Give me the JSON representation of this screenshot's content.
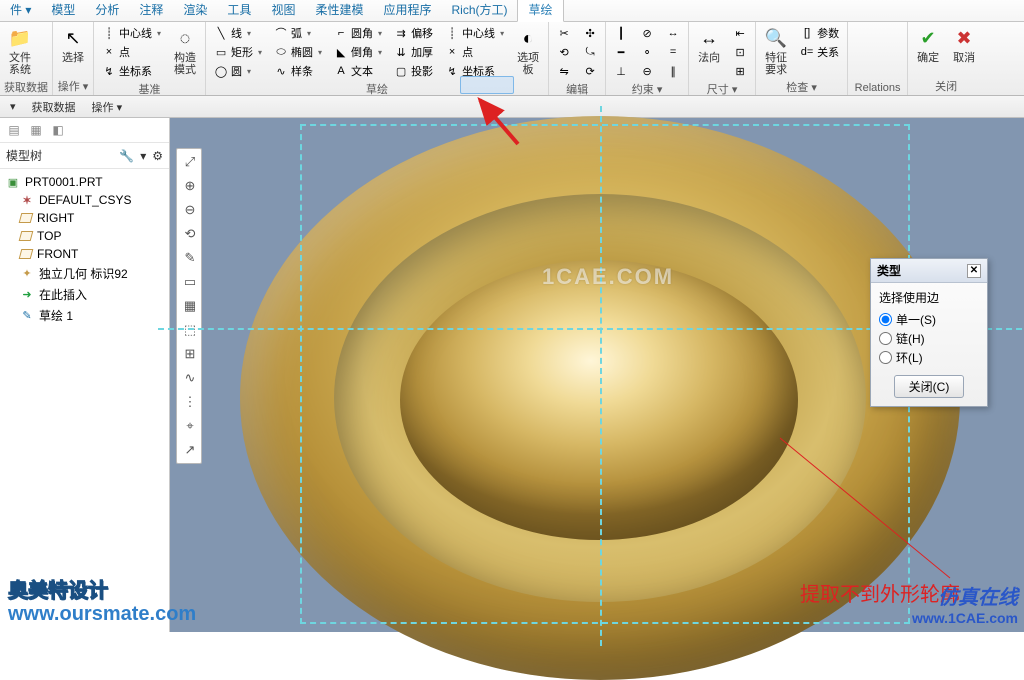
{
  "tabs": {
    "items": [
      "件 ▾",
      "模型",
      "分析",
      "注释",
      "渲染",
      "工具",
      "视图",
      "柔性建模",
      "应用程序",
      "Rich(方工)",
      "草绘"
    ],
    "active_index": 10
  },
  "ribbon": {
    "groups": {
      "file": {
        "label": "获取数据",
        "btn_file": "文件\n系统",
        "dd": "▾"
      },
      "ops": {
        "label": "操作 ▾",
        "btn_select": "选择"
      },
      "datum": {
        "label": "基准",
        "btn_mode": "构造\n模式",
        "centerline": "中心线",
        "point": "点",
        "csys": "坐标系"
      },
      "sketch": {
        "label": "草绘",
        "line": "线",
        "rect": "矩形",
        "circle": "圆",
        "arc": "弧",
        "ellipse": "椭圆",
        "spline": "样条",
        "fillet": "圆角",
        "chamfer": "倒角",
        "text": "文本",
        "offset": "偏移",
        "thicken": "加厚",
        "project": "投影",
        "cl2": "中心线",
        "pt2": "点",
        "csys2": "坐标系",
        "palette": "选项\n板"
      },
      "edit": {
        "label": "编辑"
      },
      "constrain": {
        "label": "约束 ▾"
      },
      "dim": {
        "label": "尺寸 ▾",
        "btn_dir": "法向"
      },
      "inspect": {
        "label": "检查 ▾",
        "btn_feat": "特征\n要求",
        "param": "参数",
        "rel": "关系"
      },
      "relations": {
        "label": "Relations"
      },
      "close": {
        "label": "关闭",
        "ok": "确定",
        "cancel": "取消"
      }
    }
  },
  "quickrow": {
    "a": "▾",
    "b": "获取数据",
    "c": "操作 ▾"
  },
  "tree": {
    "title": "模型树",
    "items": [
      {
        "icon": "cube",
        "label": "PRT0001.PRT",
        "root": true
      },
      {
        "icon": "csys",
        "label": "DEFAULT_CSYS"
      },
      {
        "icon": "plane",
        "label": "RIGHT"
      },
      {
        "icon": "plane",
        "label": "TOP"
      },
      {
        "icon": "plane",
        "label": "FRONT"
      },
      {
        "icon": "geom",
        "label": "独立几何 标识92"
      },
      {
        "icon": "insert",
        "label": "在此插入"
      },
      {
        "icon": "sketch",
        "label": "草绘 1"
      }
    ]
  },
  "side_tools": [
    "⤢",
    "⊕",
    "⊖",
    "⟲",
    "✎",
    "▭",
    "▦",
    "⬚",
    "⊞",
    "∿",
    "⋮",
    "⌖",
    "↗"
  ],
  "type_panel": {
    "title": "类型",
    "group": "选择使用边",
    "opts": [
      "单一(S)",
      "链(H)",
      "环(L)"
    ],
    "selected": 0,
    "close_btn": "关闭(C)"
  },
  "watermark_center": "1CAE.COM",
  "annotation_text": "提取不到外形轮廓",
  "bl": {
    "l1": "奥美特设计",
    "l2": "www.oursmate.com"
  },
  "br": {
    "l1": "仿真在线",
    "l2": "www.1CAE.com"
  },
  "colors": {
    "canvas_bg": "#8296b0",
    "dash": "#6ed6e0",
    "red": "#d22222"
  }
}
